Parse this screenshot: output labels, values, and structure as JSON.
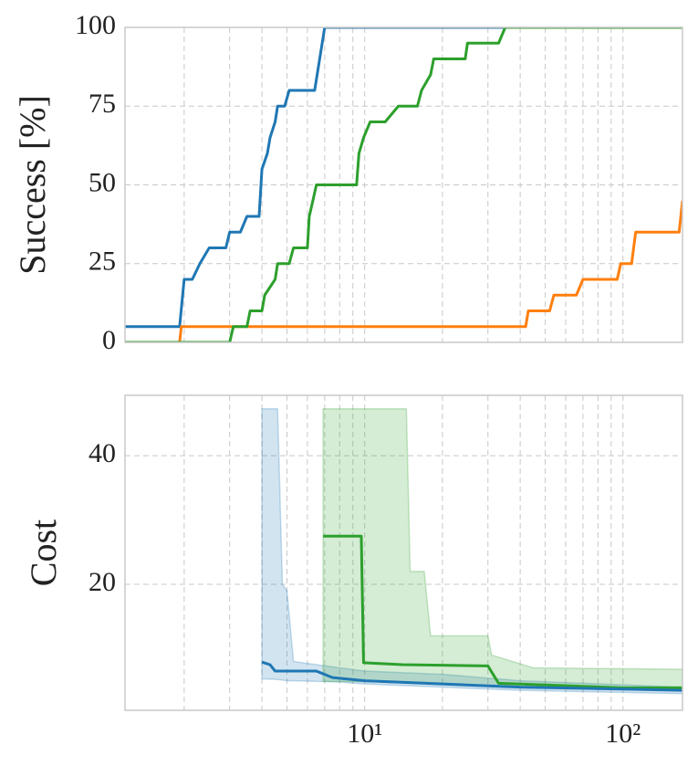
{
  "chart_data": [
    {
      "type": "line",
      "ylabel": "Success [%]",
      "xscale": "log",
      "grid": true,
      "xlim": [
        1.18,
        170
      ],
      "ylim": [
        0,
        100
      ],
      "yticks": [
        0,
        25,
        50,
        75,
        100
      ],
      "xgrid": [
        2,
        3,
        4,
        5,
        6,
        7,
        8,
        9,
        10,
        20,
        30,
        40,
        50,
        60,
        70,
        80,
        90,
        100
      ],
      "series": [
        {
          "color": "#1f77b4",
          "x": [
            1.18,
            1.92,
            2.0,
            2.15,
            2.3,
            2.5,
            2.9,
            3.0,
            3.3,
            3.5,
            3.9,
            4.0,
            4.2,
            4.3,
            4.5,
            4.6,
            4.9,
            5.1,
            6.4,
            7.0,
            170
          ],
          "values": [
            5,
            5,
            20,
            20,
            25,
            30,
            30,
            35,
            35,
            40,
            40,
            55,
            60,
            65,
            70,
            75,
            75,
            80,
            80,
            100,
            100
          ]
        },
        {
          "color": "#ff7f0e",
          "x": [
            1.18,
            1.92,
            1.95,
            42,
            43,
            52,
            54,
            66,
            70,
            95,
            98,
            108,
            112,
            165,
            170
          ],
          "values": [
            0,
            0,
            5,
            5,
            10,
            10,
            15,
            15,
            20,
            20,
            25,
            25,
            35,
            35,
            45
          ]
        },
        {
          "color": "#2ca02c",
          "x": [
            1.18,
            3.0,
            3.1,
            3.5,
            3.6,
            4.0,
            4.1,
            4.5,
            4.6,
            5.1,
            5.3,
            6.0,
            6.1,
            6.3,
            6.5,
            9.3,
            9.5,
            9.9,
            10.5,
            12,
            13.5,
            16,
            16.6,
            18,
            18.5,
            24.5,
            25,
            33,
            35,
            170
          ],
          "values": [
            0,
            0,
            5,
            5,
            10,
            10,
            15,
            20,
            25,
            25,
            30,
            30,
            40,
            45,
            50,
            50,
            60,
            65,
            70,
            70,
            75,
            75,
            80,
            85,
            90,
            90,
            95,
            95,
            100,
            100
          ]
        }
      ]
    },
    {
      "type": "line",
      "ylabel": "Cost",
      "xscale": "log",
      "grid": true,
      "xlim": [
        1.18,
        170
      ],
      "ylim": [
        0.4,
        49.4
      ],
      "yticks": [
        20,
        40
      ],
      "xticks": [
        {
          "value": 10,
          "label": "10¹"
        },
        {
          "value": 100,
          "label": "10²"
        }
      ],
      "xgrid": [
        2,
        3,
        4,
        5,
        6,
        7,
        8,
        9,
        10,
        20,
        30,
        40,
        50,
        60,
        70,
        80,
        90,
        100
      ],
      "bands": [
        {
          "color": "#1f77b4",
          "x": [
            4.0,
            4.6,
            4.8,
            5.0,
            5.3,
            8,
            10,
            20,
            40,
            170
          ],
          "upper": [
            47.3,
            47.3,
            20,
            19,
            8,
            7,
            6.5,
            6,
            5,
            4
          ],
          "lower": [
            5.3,
            5.2,
            5.1,
            5.0,
            5.0,
            4.8,
            4.5,
            4.0,
            3.5,
            3.0
          ]
        },
        {
          "color": "#2ca02c",
          "x": [
            6.9,
            14.5,
            15,
            17,
            18,
            30,
            31,
            45,
            170
          ],
          "upper": [
            47.3,
            47.3,
            22,
            22,
            12,
            12,
            9,
            7,
            6.8
          ],
          "lower": [
            4.9,
            4.8,
            4.8,
            4.7,
            4.6,
            4.2,
            4.1,
            3.9,
            3.5
          ]
        }
      ],
      "series": [
        {
          "color": "#2ca02c",
          "x": [
            6.9,
            9.7,
            9.9,
            14,
            30,
            33,
            100,
            170
          ],
          "values": [
            27.5,
            27.5,
            7.8,
            7.5,
            7.3,
            4.6,
            3.9,
            3.9
          ]
        },
        {
          "color": "#1f77b4",
          "x": [
            4.0,
            4.3,
            4.5,
            6.5,
            7.5,
            10,
            20,
            40,
            100,
            170
          ],
          "values": [
            7.9,
            7.5,
            6.5,
            6.5,
            5.5,
            5.0,
            4.5,
            4.0,
            3.7,
            3.5
          ]
        }
      ]
    }
  ]
}
